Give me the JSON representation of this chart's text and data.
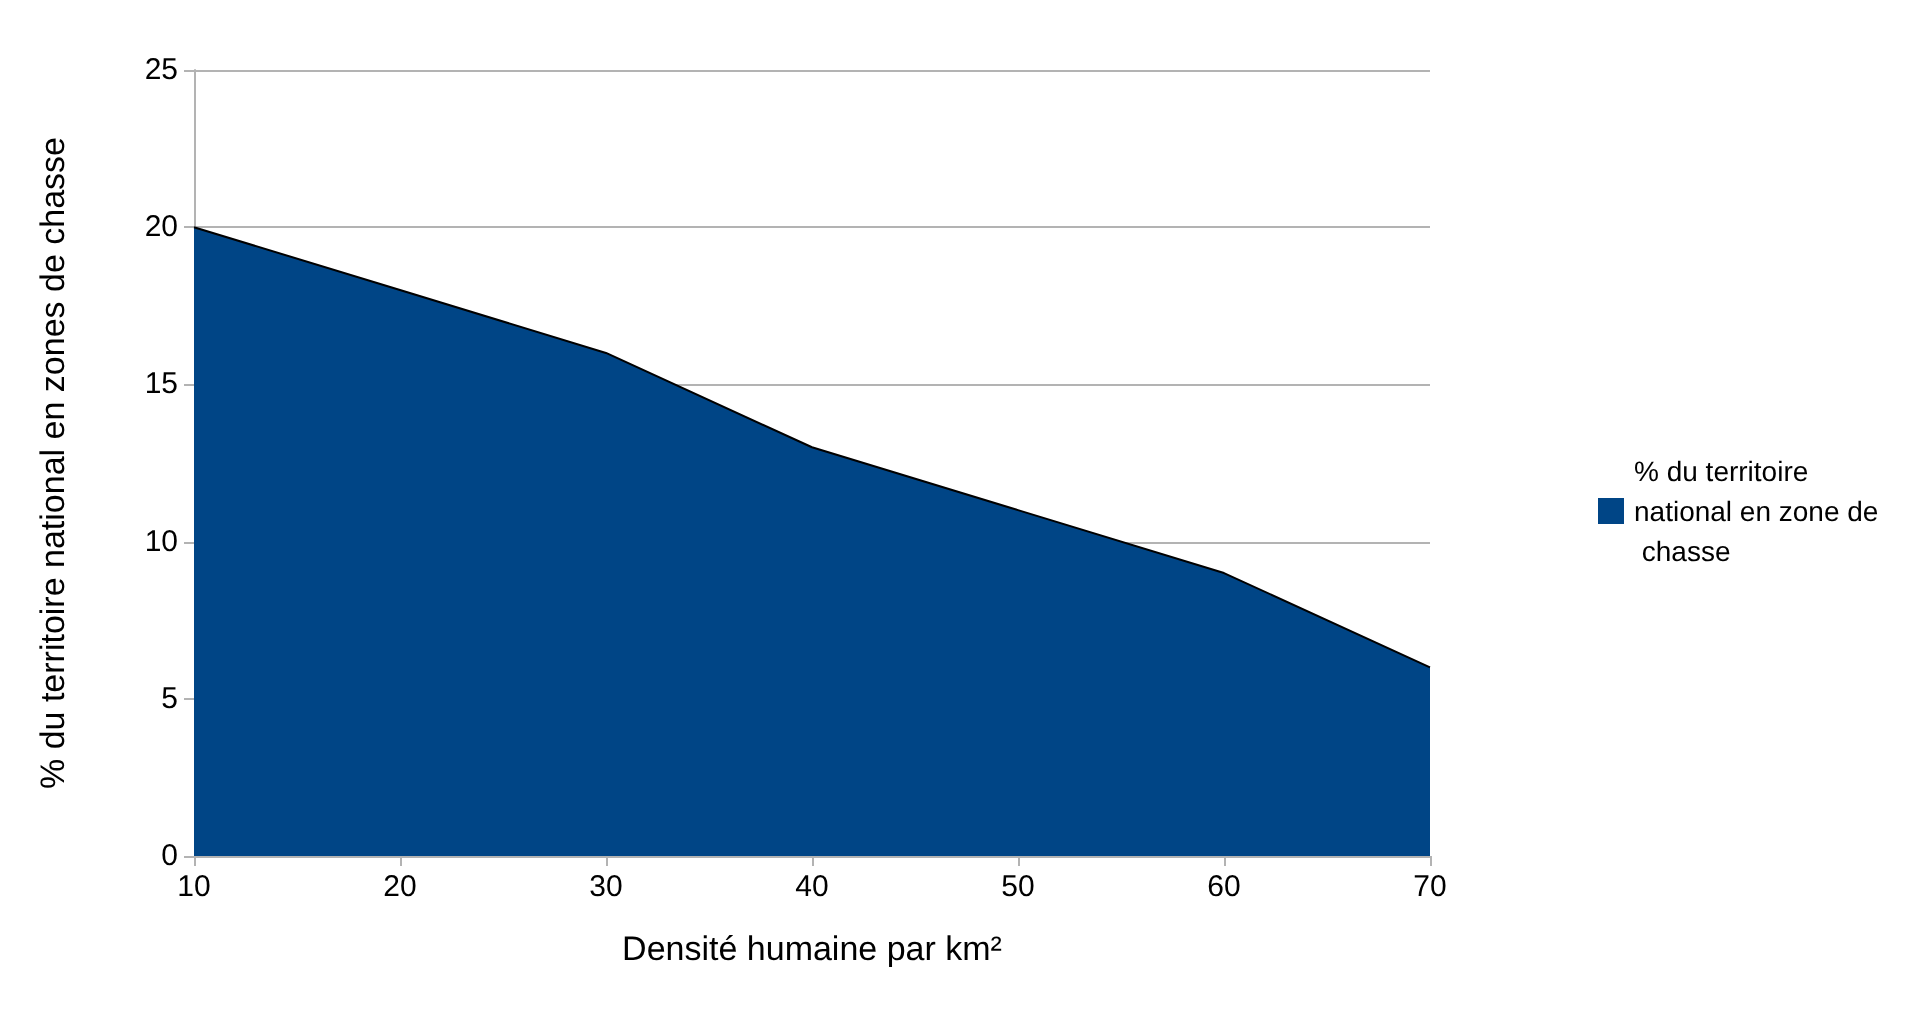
{
  "chart_data": {
    "type": "area",
    "xlabel": "Densité humaine par km²",
    "ylabel": "% du territoire national en zones de chasse",
    "x": [
      10,
      20,
      30,
      40,
      50,
      60,
      70
    ],
    "series": [
      {
        "name": "% du territoire national en zone de chasse",
        "color": "#004586",
        "values": [
          20,
          18,
          16,
          13,
          11,
          9,
          6
        ]
      }
    ],
    "xlim": [
      10,
      70
    ],
    "xticks": [
      10,
      20,
      30,
      40,
      50,
      60,
      70
    ],
    "ylim": [
      0,
      25
    ],
    "yticks": [
      0,
      5,
      10,
      15,
      20,
      25
    ],
    "grid": "y",
    "legend": "right",
    "marker": "none"
  }
}
